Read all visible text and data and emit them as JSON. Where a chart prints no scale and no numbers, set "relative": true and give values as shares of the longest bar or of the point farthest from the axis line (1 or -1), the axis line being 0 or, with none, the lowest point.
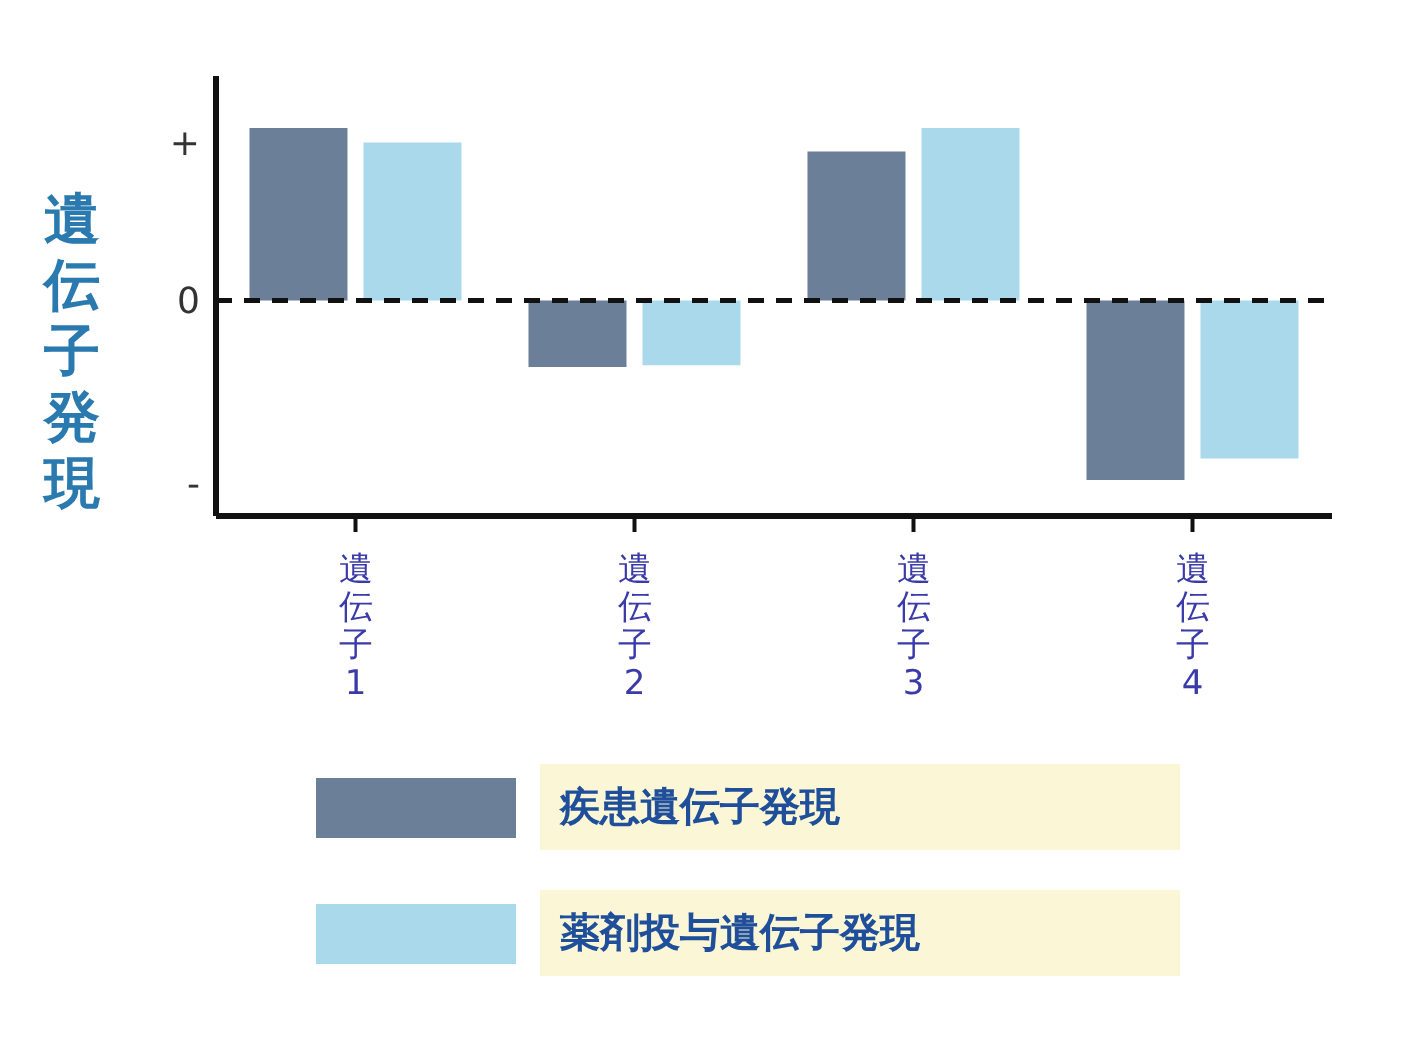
{
  "chart_data": {
    "type": "bar",
    "relative": true,
    "ylabel": "遺伝子発現",
    "categories": [
      "遺伝子1",
      "遺伝子2",
      "遺伝子3",
      "遺伝子4"
    ],
    "series": [
      {
        "name": "疾患遺伝子発現",
        "color": "#6b7f99",
        "values": [
          0.96,
          -0.37,
          0.83,
          -1
        ]
      },
      {
        "name": "薬剤投与遺伝子発現",
        "color": "#a9d9ea",
        "values": [
          0.88,
          -0.36,
          0.96,
          -0.88
        ]
      }
    ],
    "annotations": [
      "+",
      "0",
      "-"
    ],
    "ref_lines": [
      {
        "axis": "y",
        "value": 0,
        "line_style": "dashed",
        "color": "#111111"
      }
    ],
    "grid": false,
    "legend": "bottom"
  }
}
